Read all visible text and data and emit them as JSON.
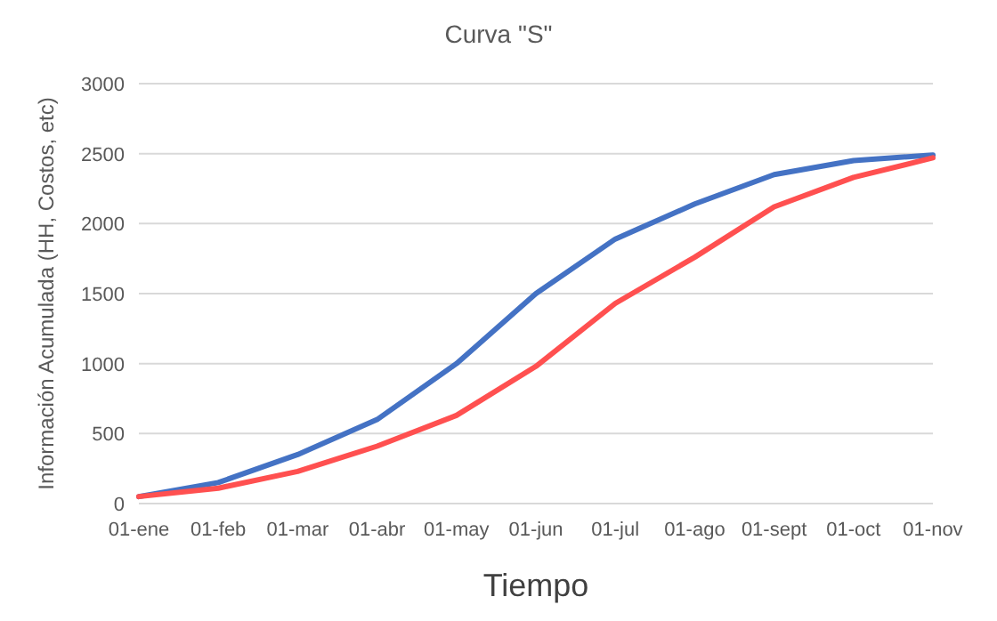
{
  "chart_data": {
    "type": "line",
    "title": "Curva \"S\"",
    "xlabel": "Tiempo",
    "ylabel": "Información Acumulada (HH, Costos, etc)",
    "categories": [
      "01-ene",
      "01-feb",
      "01-mar",
      "01-abr",
      "01-may",
      "01-jun",
      "01-jul",
      "01-ago",
      "01-sept",
      "01-oct",
      "01-nov"
    ],
    "series": [
      {
        "color": "#4472c4",
        "values": [
          50,
          150,
          350,
          600,
          1000,
          1500,
          1890,
          2140,
          2350,
          2450,
          2490
        ]
      },
      {
        "color": "#ff5050",
        "values": [
          50,
          110,
          230,
          410,
          630,
          980,
          1430,
          1760,
          2120,
          2330,
          2470
        ]
      }
    ],
    "ylim": [
      0,
      3000
    ],
    "yticks": [
      0,
      500,
      1000,
      1500,
      2000,
      2500,
      3000
    ],
    "grid": "y",
    "marker": "none",
    "line_style": "solid"
  }
}
